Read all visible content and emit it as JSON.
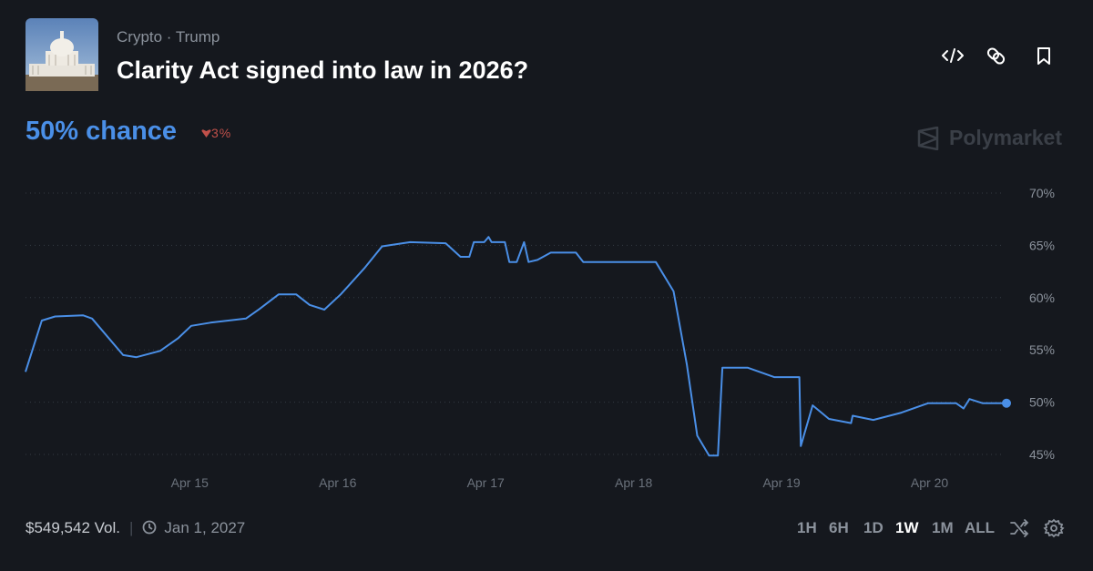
{
  "header": {
    "tags": [
      "Crypto",
      "Trump"
    ],
    "title": "Clarity Act signed into law in 2026?"
  },
  "headline": {
    "value": 50,
    "label": "50% chance"
  },
  "change": {
    "value": 3,
    "label": "3%"
  },
  "brand": "Polymarket",
  "footer": {
    "volume": "$549,542 Vol.",
    "end_date": "Jan 1, 2027",
    "ranges": [
      "1H",
      "6H",
      "1D",
      "1W",
      "1M",
      "ALL"
    ],
    "active_range": "1W"
  },
  "chart_data": {
    "type": "line",
    "color": "#4a8fe7",
    "grid": true,
    "x": [
      13.89,
      14.0,
      14.09,
      14.28,
      14.34,
      14.55,
      14.64,
      14.8,
      14.92,
      15.01,
      15.14,
      15.38,
      15.47,
      15.6,
      15.72,
      15.81,
      15.91,
      16.02,
      16.18,
      16.3,
      16.49,
      16.73,
      16.83,
      16.89,
      16.92,
      16.99,
      17.02,
      17.04,
      17.13,
      17.16,
      17.21,
      17.26,
      17.29,
      17.35,
      17.44,
      17.61,
      17.66,
      18.15,
      18.27,
      18.36,
      18.43,
      18.51,
      18.57,
      18.6,
      18.77,
      18.95,
      19.12,
      19.13,
      19.21,
      19.32,
      19.47,
      19.48,
      19.62,
      19.81,
      19.99,
      20.18,
      20.23,
      20.27,
      20.36,
      20.52
    ],
    "values": [
      52.9,
      57.8,
      58.2,
      58.3,
      58.0,
      54.5,
      54.3,
      54.9,
      56.1,
      57.3,
      57.6,
      58.0,
      58.9,
      60.3,
      60.3,
      59.3,
      58.85,
      60.3,
      62.8,
      64.9,
      65.3,
      65.2,
      63.9,
      63.9,
      65.3,
      65.3,
      65.8,
      65.3,
      65.3,
      63.4,
      63.4,
      65.3,
      63.4,
      63.6,
      64.3,
      64.3,
      63.4,
      63.4,
      60.6,
      53.6,
      46.8,
      44.9,
      44.9,
      53.3,
      53.3,
      52.4,
      52.4,
      45.8,
      49.7,
      48.4,
      48.0,
      48.7,
      48.3,
      49.0,
      49.9,
      49.9,
      49.4,
      50.3,
      49.9,
      49.9
    ],
    "xlim": [
      13.89,
      20.52
    ],
    "xticks": [
      {
        "value": 15,
        "label": "Apr 15"
      },
      {
        "value": 16,
        "label": "Apr 16"
      },
      {
        "value": 17,
        "label": "Apr 17"
      },
      {
        "value": 18,
        "label": "Apr 18"
      },
      {
        "value": 19,
        "label": "Apr 19"
      },
      {
        "value": 20,
        "label": "Apr 20"
      }
    ],
    "ylim": [
      44,
      72
    ],
    "yticks": [
      {
        "value": 45,
        "label": "45%"
      },
      {
        "value": 50,
        "label": "50%"
      },
      {
        "value": 55,
        "label": "55%"
      },
      {
        "value": 60,
        "label": "60%"
      },
      {
        "value": 65,
        "label": "65%"
      },
      {
        "value": 70,
        "label": "70%"
      }
    ]
  }
}
